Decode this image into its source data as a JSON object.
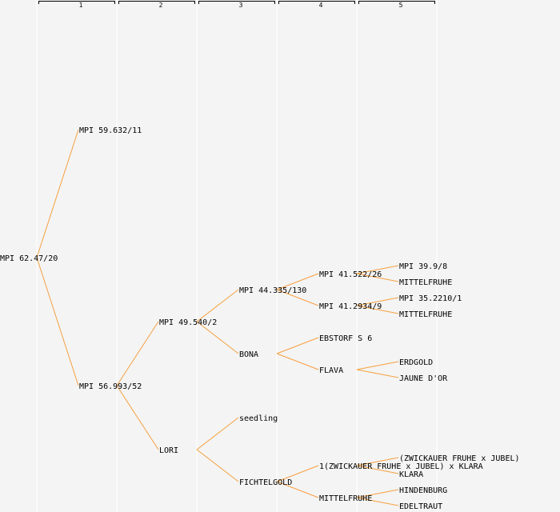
{
  "generations": [
    "1",
    "2",
    "3",
    "4",
    "5"
  ],
  "nodes": {
    "root": "MPI 62.47/20",
    "p1": "MPI 59.632/11",
    "p2": "MPI 56.993/52",
    "gp1": "MPI 49.540/2",
    "gp2": "LORI",
    "ggp1": "MPI 44.335/130",
    "ggp2": "BONA",
    "ggp3": "seedling",
    "ggp4": "FICHTELGOLD",
    "g4a": "MPI 41.522/26",
    "g4b": "MPI 41.2934/9",
    "g4c": "EBSTORF S 6",
    "g4d": "FLAVA",
    "g4e": "1(ZWICKAUER FRUHE x JUBEL) x KLARA",
    "g4f": "MITTELFRUHE",
    "g5a": "MPI 39.9/8",
    "g5b": "MITTELFRUHE",
    "g5c": "MPI 35.2210/1",
    "g5d": "MITTELFRUHE",
    "g5e": "ERDGOLD",
    "g5f": "JAUNE D'OR",
    "g5g": "(ZWICKAUER FRUHE x JUBEL)",
    "g5h": "KLARA",
    "g5i": "HINDENBURG",
    "g5j": "EDELTRAUT"
  },
  "colors": {
    "background": "#f4f4f4",
    "branch": "#f5a040",
    "column_separator": "#ffffff",
    "text": "#000000"
  }
}
